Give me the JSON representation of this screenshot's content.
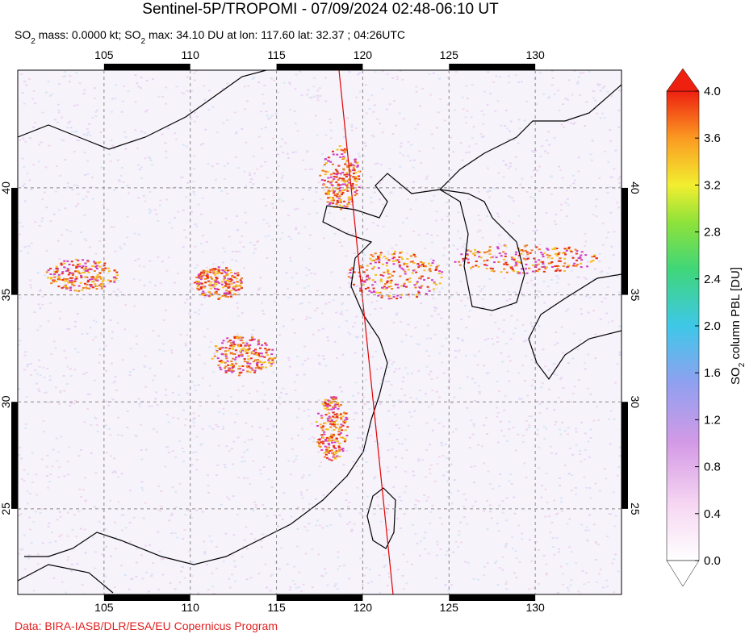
{
  "header": {
    "title": "Sentinel-5P/TROPOMI - 07/09/2024 02:48-06:10 UT",
    "subtitle_parts": [
      "SO",
      "2",
      " mass: 0.0000 kt; SO",
      "2",
      " max: 34.10 DU at lon: 117.60 lat: 32.37 ; 04:26UTC"
    ]
  },
  "map": {
    "xlim": [
      100,
      135
    ],
    "ylim": [
      21,
      45.5
    ],
    "xticks": [
      105,
      110,
      115,
      120,
      125,
      130
    ],
    "yticks": [
      25,
      30,
      35,
      40
    ]
  },
  "colorbar": {
    "label_parts": [
      "SO",
      "2",
      " column PBL [DU]"
    ],
    "lim": [
      0,
      4
    ],
    "ticks": [
      {
        "value": 0,
        "label": "0.0"
      },
      {
        "value": 0.4,
        "label": "0.4"
      },
      {
        "value": 0.8,
        "label": "0.8"
      },
      {
        "value": 1.2,
        "label": "1.2"
      },
      {
        "value": 1.6,
        "label": "1.6"
      },
      {
        "value": 2,
        "label": "2.0"
      },
      {
        "value": 2.4,
        "label": "2.4"
      },
      {
        "value": 2.8,
        "label": "2.8"
      },
      {
        "value": 3.2,
        "label": "3.2"
      },
      {
        "value": 3.6,
        "label": "3.6"
      },
      {
        "value": 4,
        "label": "4.0"
      }
    ]
  },
  "footer": {
    "credit": "Data: BIRA-IASB/DLR/ESA/EU Copernicus Program"
  }
}
